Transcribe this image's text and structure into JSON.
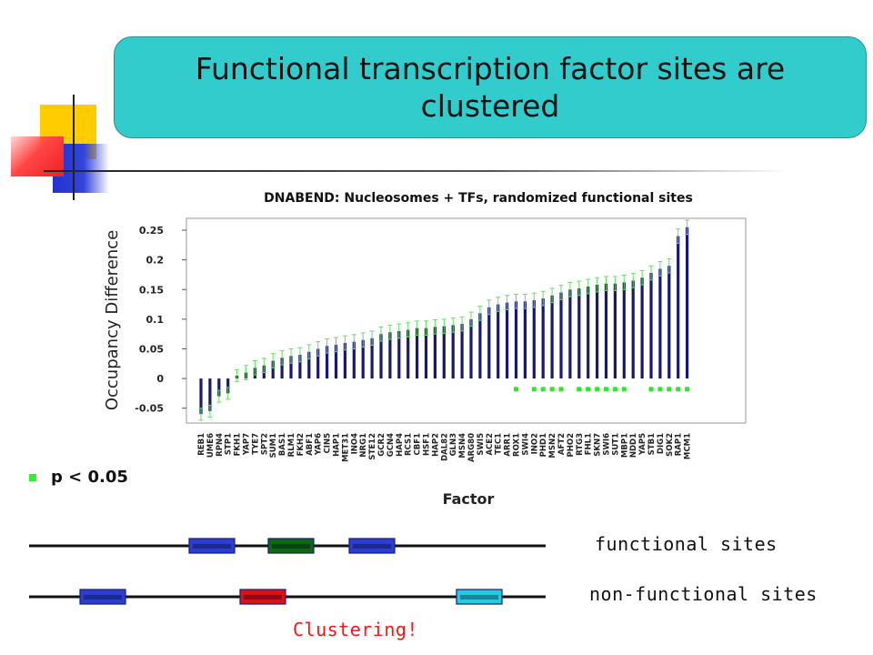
{
  "slide": {
    "title": "Functional transcription factor sites are clustered",
    "legend_label": "p < 0.05",
    "functional_label": "functional sites",
    "nonfunctional_label": "non-functional sites",
    "clustering_label": "Clustering!"
  },
  "colors": {
    "title_bg": "#33cccc",
    "bar": "#191970",
    "error_bar": "#66dd66",
    "significant_marker": "#22ee22",
    "site_blue": "#2a3fd0",
    "site_green": "#0b6b0b",
    "site_red": "#e01010",
    "site_cyan": "#22ccdd",
    "clustering_text": "#ff1111"
  },
  "chart_data": {
    "type": "bar",
    "title": "DNABEND: Nucleosomes + TFs, randomized functional sites",
    "xlabel": "Factor",
    "ylabel": "Occupancy Difference",
    "ylim": [
      -0.075,
      0.27
    ],
    "yticks": [
      -0.05,
      0,
      0.05,
      0.1,
      0.15,
      0.2,
      0.25
    ],
    "ytick_labels": [
      "-0.05",
      "0",
      "0.05",
      "0.1",
      "0.15",
      "0.2",
      "0.25"
    ],
    "grid": false,
    "categories": [
      "REB1",
      "UME6",
      "RPN4",
      "STP1",
      "FKH1",
      "YAP7",
      "TYE7",
      "SPT2",
      "SUM1",
      "BAS1",
      "RLM1",
      "FKH2",
      "ABF1",
      "YAP6",
      "CIN5",
      "HAP1",
      "MET31",
      "INO4",
      "NRG1",
      "STE12",
      "GCR2",
      "GCN4",
      "HAP4",
      "RCS1",
      "CBF1",
      "HSF1",
      "HAP2",
      "DAL82",
      "GLN3",
      "MSN4",
      "ARG80",
      "SWI5",
      "ACE2",
      "TEC1",
      "ARR1",
      "ROX1",
      "SWI4",
      "INO2",
      "PHD1",
      "MSN2",
      "AFT2",
      "PHO2",
      "RTG3",
      "FHL1",
      "SKN7",
      "SWI6",
      "SUT1",
      "MBP1",
      "NDD1",
      "YAP5",
      "STB1",
      "DIG1",
      "SOK2",
      "RAP1",
      "MCM1"
    ],
    "values": [
      -0.06,
      -0.055,
      -0.03,
      -0.025,
      0.005,
      0.01,
      0.018,
      0.022,
      0.03,
      0.035,
      0.038,
      0.04,
      0.045,
      0.05,
      0.055,
      0.057,
      0.06,
      0.062,
      0.065,
      0.068,
      0.075,
      0.078,
      0.08,
      0.082,
      0.085,
      0.085,
      0.087,
      0.088,
      0.09,
      0.092,
      0.1,
      0.11,
      0.12,
      0.125,
      0.128,
      0.13,
      0.13,
      0.132,
      0.135,
      0.14,
      0.145,
      0.15,
      0.152,
      0.155,
      0.158,
      0.16,
      0.16,
      0.162,
      0.165,
      0.17,
      0.178,
      0.185,
      0.19,
      0.24,
      0.255
    ],
    "errors": [
      0.01,
      0.01,
      0.01,
      0.01,
      0.01,
      0.012,
      0.012,
      0.012,
      0.012,
      0.012,
      0.012,
      0.012,
      0.012,
      0.012,
      0.012,
      0.012,
      0.012,
      0.012,
      0.012,
      0.012,
      0.012,
      0.012,
      0.012,
      0.012,
      0.012,
      0.012,
      0.012,
      0.012,
      0.012,
      0.012,
      0.012,
      0.012,
      0.012,
      0.012,
      0.012,
      0.012,
      0.012,
      0.012,
      0.012,
      0.012,
      0.012,
      0.012,
      0.012,
      0.012,
      0.012,
      0.012,
      0.012,
      0.012,
      0.012,
      0.012,
      0.012,
      0.012,
      0.012,
      0.012,
      0.012
    ],
    "significant": [
      "ROX1",
      "INO2",
      "PHD1",
      "MSN2",
      "AFT2",
      "RTG3",
      "FHL1",
      "SKN7",
      "SWI6",
      "SUT1",
      "MBP1",
      "STB1",
      "DIG1",
      "SOK2",
      "RAP1",
      "MCM1"
    ],
    "significant_marker_y": -0.018
  },
  "diagram": {
    "functional_track": [
      "blue",
      "green",
      "blue"
    ],
    "nonfunctional_track": [
      "blue",
      "red",
      "cyan"
    ]
  }
}
